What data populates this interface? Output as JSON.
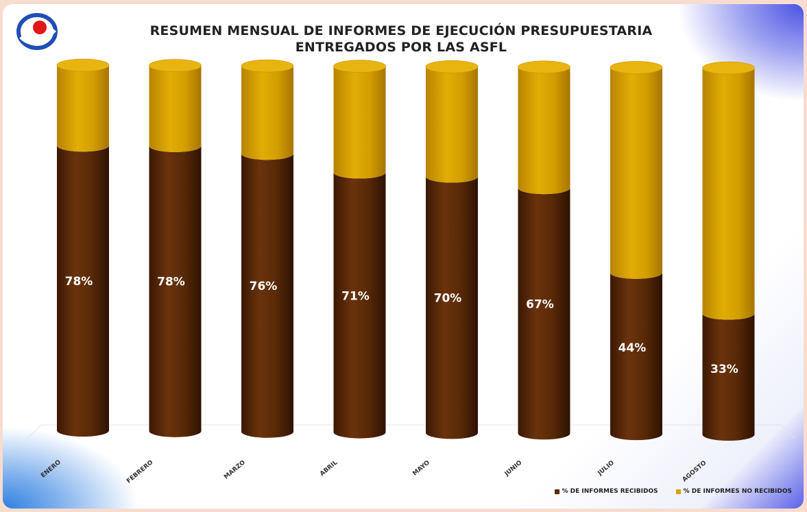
{
  "chart_data": {
    "type": "bar",
    "stacked": true,
    "title": "RESUMEN MENSUAL DE INFORMES DE EJECUCIÓN PRESUPUESTARIA",
    "subtitle": "ENTREGADOS POR LAS ASFL",
    "categories": [
      "ENERO",
      "FEBRERO",
      "MARZO",
      "ABRIL",
      "MAYO",
      "JUNIO",
      "JULIO",
      "AGOSTO"
    ],
    "series": [
      {
        "name": "% DE INFORMES RECIBIDOS",
        "values": [
          78,
          78,
          76,
          71,
          70,
          67,
          44,
          33
        ],
        "color": "#5a2a08"
      },
      {
        "name": "%  DE INFORMES NO RECIBIDOS",
        "values": [
          22,
          22,
          24,
          29,
          30,
          33,
          56,
          67
        ],
        "color": "#d6a200"
      }
    ],
    "data_labels": [
      "78%",
      "78%",
      "76%",
      "71%",
      "70%",
      "67%",
      "44%",
      "33%"
    ],
    "ylim": [
      0,
      100
    ],
    "legend_position": "bottom-right",
    "grid": false
  }
}
